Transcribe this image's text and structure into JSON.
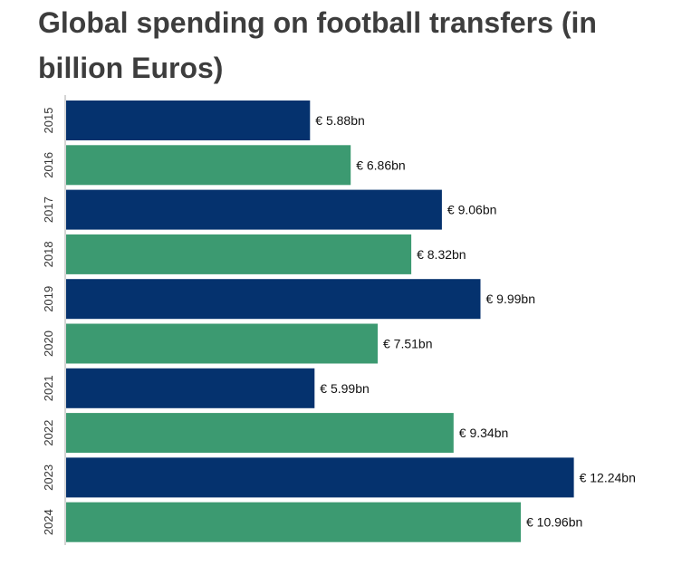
{
  "title": "Global spending on football transfers (in billion Euros)",
  "colors": {
    "odd": "#05326e",
    "even": "#3c9a71",
    "axis": "#a8a8a8",
    "title": "#3d3d3d"
  },
  "chart_data": {
    "type": "bar",
    "orientation": "horizontal",
    "title": "Global spending on football transfers (in billion Euros)",
    "xlabel": "",
    "ylabel": "",
    "xlim": [
      0,
      13
    ],
    "grid": false,
    "legend": "none",
    "categories": [
      "2015",
      "2016",
      "2017",
      "2018",
      "2019",
      "2020",
      "2021",
      "2022",
      "2023",
      "2024"
    ],
    "values": [
      5.88,
      6.86,
      9.06,
      8.32,
      9.99,
      7.51,
      5.99,
      9.34,
      12.24,
      10.96
    ],
    "value_labels": [
      "€ 5.88bn",
      "€ 6.86bn",
      "€ 9.06bn",
      "€ 8.32bn",
      "€ 9.99bn",
      "€ 7.51bn",
      "€ 5.99bn",
      "€ 9.34bn",
      "€ 12.24bn",
      "€ 10.96bn"
    ]
  }
}
